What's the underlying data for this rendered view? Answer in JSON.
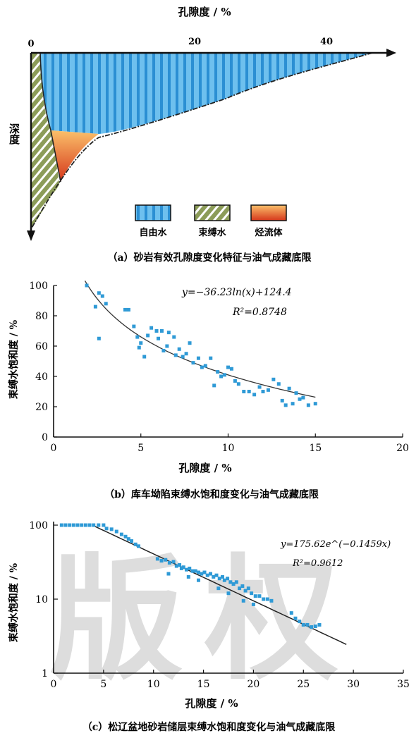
{
  "chart_data": [
    {
      "type": "area",
      "title": "",
      "xlabel": "孔隙度 / %",
      "ylabel": "深度",
      "xlim": [
        0,
        50
      ],
      "x_ticks": [
        "0",
        "20",
        "40"
      ],
      "series": [
        {
          "name": "自由水",
          "color": "#5bb4e6",
          "stripe_color": "#2e8fd0"
        },
        {
          "name": "束缚水",
          "color": "#8a9a55",
          "stripe_color": "#ffffff"
        },
        {
          "name": "烃流体",
          "color": "#f08a2a",
          "edge_color": "#d43a1a"
        }
      ],
      "legend_position": "bottom",
      "caption": "（a）砂岩有效孔隙度变化特征与油气成藏底限"
    },
    {
      "type": "scatter",
      "title": "",
      "xlabel": "孔隙度 / %",
      "ylabel": "束缚水饱和度 / %",
      "xlim": [
        0,
        20
      ],
      "ylim": [
        0,
        100
      ],
      "x_ticks": [
        "0",
        "5",
        "10",
        "15",
        "20"
      ],
      "y_ticks": [
        "0",
        "20",
        "40",
        "60",
        "80",
        "100"
      ],
      "grid": false,
      "equation": "y=−36.23ln(x)+124.4",
      "r2": "R²=0.8748",
      "fit": {
        "kind": "log",
        "a": -36.23,
        "b": 124.4,
        "x_range": [
          1.8,
          15
        ]
      },
      "points": [
        [
          1.9,
          100
        ],
        [
          2.4,
          86
        ],
        [
          2.6,
          95
        ],
        [
          2.6,
          65
        ],
        [
          2.8,
          93
        ],
        [
          3.0,
          88
        ],
        [
          4.1,
          84
        ],
        [
          4.3,
          84
        ],
        [
          4.6,
          73
        ],
        [
          4.8,
          66
        ],
        [
          4.9,
          59
        ],
        [
          5.0,
          62
        ],
        [
          5.2,
          53
        ],
        [
          5.4,
          67
        ],
        [
          5.6,
          72
        ],
        [
          5.9,
          70
        ],
        [
          6.0,
          65
        ],
        [
          6.2,
          70
        ],
        [
          6.3,
          57
        ],
        [
          6.5,
          60
        ],
        [
          6.6,
          69
        ],
        [
          6.9,
          66
        ],
        [
          7.0,
          54
        ],
        [
          7.2,
          58
        ],
        [
          7.4,
          53
        ],
        [
          7.6,
          55
        ],
        [
          7.8,
          62
        ],
        [
          8.0,
          49
        ],
        [
          8.3,
          52
        ],
        [
          8.5,
          46
        ],
        [
          8.7,
          47
        ],
        [
          9.0,
          52
        ],
        [
          9.2,
          34
        ],
        [
          9.4,
          43
        ],
        [
          9.6,
          40
        ],
        [
          9.8,
          41
        ],
        [
          10.0,
          46
        ],
        [
          10.2,
          45
        ],
        [
          10.4,
          37
        ],
        [
          10.6,
          35
        ],
        [
          10.9,
          30
        ],
        [
          11.2,
          30
        ],
        [
          11.5,
          28
        ],
        [
          11.8,
          33
        ],
        [
          12.0,
          30
        ],
        [
          12.3,
          31
        ],
        [
          12.6,
          38
        ],
        [
          12.9,
          35
        ],
        [
          13.1,
          24
        ],
        [
          13.3,
          21
        ],
        [
          13.5,
          32
        ],
        [
          13.7,
          22
        ],
        [
          13.9,
          29
        ],
        [
          14.1,
          25
        ],
        [
          14.3,
          26
        ],
        [
          14.6,
          21
        ],
        [
          15.0,
          22
        ]
      ],
      "caption": "（b）库车坳陷束缚水饱和度变化与油气成藏底限"
    },
    {
      "type": "scatter",
      "title": "",
      "xlabel": "孔隙度 / %",
      "ylabel": "束缚水饱和度 / %",
      "xlim": [
        0,
        35
      ],
      "ylim": [
        1,
        100
      ],
      "y_scale": "log",
      "x_ticks": [
        "0",
        "5",
        "10",
        "15",
        "20",
        "25",
        "30",
        "35"
      ],
      "y_ticks": [
        "1",
        "10",
        "100"
      ],
      "grid": false,
      "equation": "y=175.62e^(−0.1459x)",
      "r2": "R²=0.9612",
      "fit": {
        "kind": "exp",
        "a": 175.62,
        "b": -0.1459,
        "x_range": [
          3.9,
          29.3
        ]
      },
      "points": [
        [
          0.8,
          100
        ],
        [
          1.2,
          100
        ],
        [
          1.6,
          100
        ],
        [
          2.0,
          100
        ],
        [
          2.4,
          100
        ],
        [
          2.8,
          100
        ],
        [
          3.2,
          100
        ],
        [
          3.6,
          100
        ],
        [
          4.0,
          100
        ],
        [
          4.5,
          100
        ],
        [
          5.0,
          100
        ],
        [
          5.3,
          90
        ],
        [
          5.8,
          88
        ],
        [
          6.3,
          82
        ],
        [
          6.8,
          75
        ],
        [
          7.2,
          70
        ],
        [
          7.5,
          65
        ],
        [
          7.8,
          61
        ],
        [
          8.2,
          55
        ],
        [
          8.5,
          52
        ],
        [
          10.4,
          35
        ],
        [
          10.8,
          33
        ],
        [
          11.2,
          34
        ],
        [
          11.6,
          31
        ],
        [
          12.0,
          32
        ],
        [
          12.3,
          28
        ],
        [
          12.6,
          29
        ],
        [
          12.8,
          26
        ],
        [
          13.0,
          27
        ],
        [
          13.3,
          25
        ],
        [
          13.6,
          26
        ],
        [
          13.9,
          24
        ],
        [
          14.2,
          24
        ],
        [
          14.5,
          23
        ],
        [
          14.8,
          22
        ],
        [
          15.1,
          23
        ],
        [
          15.4,
          21
        ],
        [
          15.7,
          22
        ],
        [
          16.0,
          20
        ],
        [
          16.3,
          21
        ],
        [
          16.6,
          19
        ],
        [
          16.9,
          20
        ],
        [
          17.1,
          18
        ],
        [
          17.4,
          19
        ],
        [
          17.7,
          17
        ],
        [
          18.0,
          16
        ],
        [
          18.3,
          17
        ],
        [
          18.6,
          14
        ],
        [
          18.9,
          15
        ],
        [
          19.2,
          13
        ],
        [
          19.5,
          14
        ],
        [
          19.8,
          12
        ],
        [
          20.2,
          11
        ],
        [
          20.6,
          11
        ],
        [
          21.0,
          10
        ],
        [
          21.4,
          10
        ],
        [
          21.8,
          9.5
        ],
        [
          23.8,
          6.5
        ],
        [
          24.2,
          5.5
        ],
        [
          24.6,
          5
        ],
        [
          25.0,
          4.5
        ],
        [
          25.4,
          4.5
        ],
        [
          25.8,
          4.2
        ],
        [
          26.2,
          4.3
        ],
        [
          26.6,
          4.5
        ],
        [
          11.5,
          22
        ],
        [
          13.5,
          20
        ],
        [
          14.5,
          18
        ],
        [
          16.5,
          14
        ],
        [
          17.5,
          12
        ],
        [
          19.0,
          9.5
        ],
        [
          20.0,
          8.5
        ]
      ],
      "caption": "（c）松辽盆地砂岩储层束缚水饱和度变化与油气成藏底限"
    }
  ],
  "watermark": "版权"
}
